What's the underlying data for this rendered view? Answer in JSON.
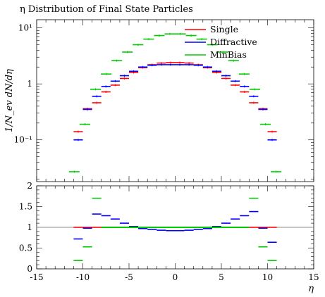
{
  "chart_data": [
    {
      "type": "line",
      "panel": "main",
      "title": "η Distribution of Final State Particles",
      "xlabel": "",
      "ylabel": "1/N_ev dN/dη",
      "xlim": [
        -15,
        15
      ],
      "ylim": [
        0.018,
        14
      ],
      "yscale": "log",
      "grid": false,
      "legend_position": "top-right",
      "bin_edges": [
        -11,
        -10,
        -9,
        -8,
        -7,
        -6,
        -5,
        -4,
        -3,
        -2,
        -1,
        0,
        1,
        2,
        3,
        4,
        5,
        6,
        7,
        8,
        9,
        10,
        11
      ],
      "series": [
        {
          "name": "Single",
          "color": "#ff0000",
          "style": "histogram",
          "values": [
            0.14,
            0.36,
            0.46,
            0.72,
            0.95,
            1.25,
            1.6,
            1.95,
            2.2,
            2.35,
            2.4,
            2.4,
            2.35,
            2.2,
            1.95,
            1.6,
            1.25,
            0.95,
            0.72,
            0.46,
            0.36,
            0.14
          ]
        },
        {
          "name": "Diffractive",
          "color": "#0000ff",
          "style": "histogram",
          "values": [
            0.1,
            0.35,
            0.6,
            0.9,
            1.12,
            1.4,
            1.68,
            2.0,
            2.15,
            2.2,
            2.2,
            2.2,
            2.2,
            2.15,
            2.0,
            1.68,
            1.4,
            1.12,
            0.9,
            0.6,
            0.35,
            0.1
          ]
        },
        {
          "name": "MinBias",
          "color": "#00cc00",
          "style": "histogram",
          "bins": "two-unit",
          "values": [
            0.027,
            0.19,
            0.8,
            1.5,
            2.6,
            3.7,
            5.0,
            6.3,
            7.3,
            7.8,
            7.8,
            7.3,
            6.3,
            5.0,
            3.7,
            2.6,
            1.5,
            0.8,
            0.19,
            0.027
          ],
          "bin_edges_two_unit": [
            -11.5,
            -10.5,
            -9.5,
            -8.5,
            -7.5,
            -6.5,
            -5.5,
            -4.5,
            -3.5,
            -2.5,
            -1.5,
            -0.5,
            0.5,
            1.5,
            2.5,
            3.5,
            4.5,
            5.5,
            6.5,
            7.5,
            8.5
          ]
        }
      ],
      "y_ticks": [
        "10⁻¹",
        "1",
        "10¹"
      ]
    },
    {
      "type": "line",
      "panel": "ratio",
      "xlabel": "η",
      "ylabel": "",
      "xlim": [
        -15,
        15
      ],
      "ylim": [
        0,
        2
      ],
      "grid": false,
      "x_ticks": [
        "-15",
        "-10",
        "-5",
        "0",
        "5",
        "10",
        "15"
      ],
      "y_ticks": [
        "0",
        "0.5",
        "1",
        "1.5",
        "2"
      ],
      "reference_line": 1,
      "bin_edges": [
        -11,
        -10,
        -9,
        -8,
        -7,
        -6,
        -5,
        -4,
        -3,
        -2,
        -1,
        0,
        1,
        2,
        3,
        4,
        5,
        6,
        7,
        8,
        9,
        10,
        11
      ],
      "series": [
        {
          "name": "Single",
          "color": "#ff0000",
          "values": [
            1.0,
            1.0,
            1.0,
            1.0,
            1.0,
            1.0,
            1.0,
            1.0,
            1.0,
            1.0,
            1.0,
            1.0,
            1.0,
            1.0,
            1.0,
            1.0,
            1.0,
            1.0,
            1.0,
            1.0,
            1.0,
            1.0
          ]
        },
        {
          "name": "Diffractive",
          "color": "#0000ff",
          "values": [
            0.72,
            0.98,
            1.32,
            1.28,
            1.2,
            1.1,
            1.02,
            0.97,
            0.95,
            0.93,
            0.92,
            0.92,
            0.93,
            0.95,
            0.97,
            1.02,
            1.1,
            1.2,
            1.28,
            1.38,
            0.98,
            0.64
          ]
        },
        {
          "name": "MinBias",
          "color": "#00cc00",
          "values": [
            0.2,
            0.53,
            1.7,
            1.0,
            1.0,
            1.0,
            1.0,
            1.0,
            1.0,
            1.0,
            1.0,
            1.0,
            1.0,
            1.0,
            1.0,
            1.0,
            1.0,
            1.0,
            1.0,
            1.7,
            0.53,
            0.2
          ]
        }
      ]
    }
  ]
}
